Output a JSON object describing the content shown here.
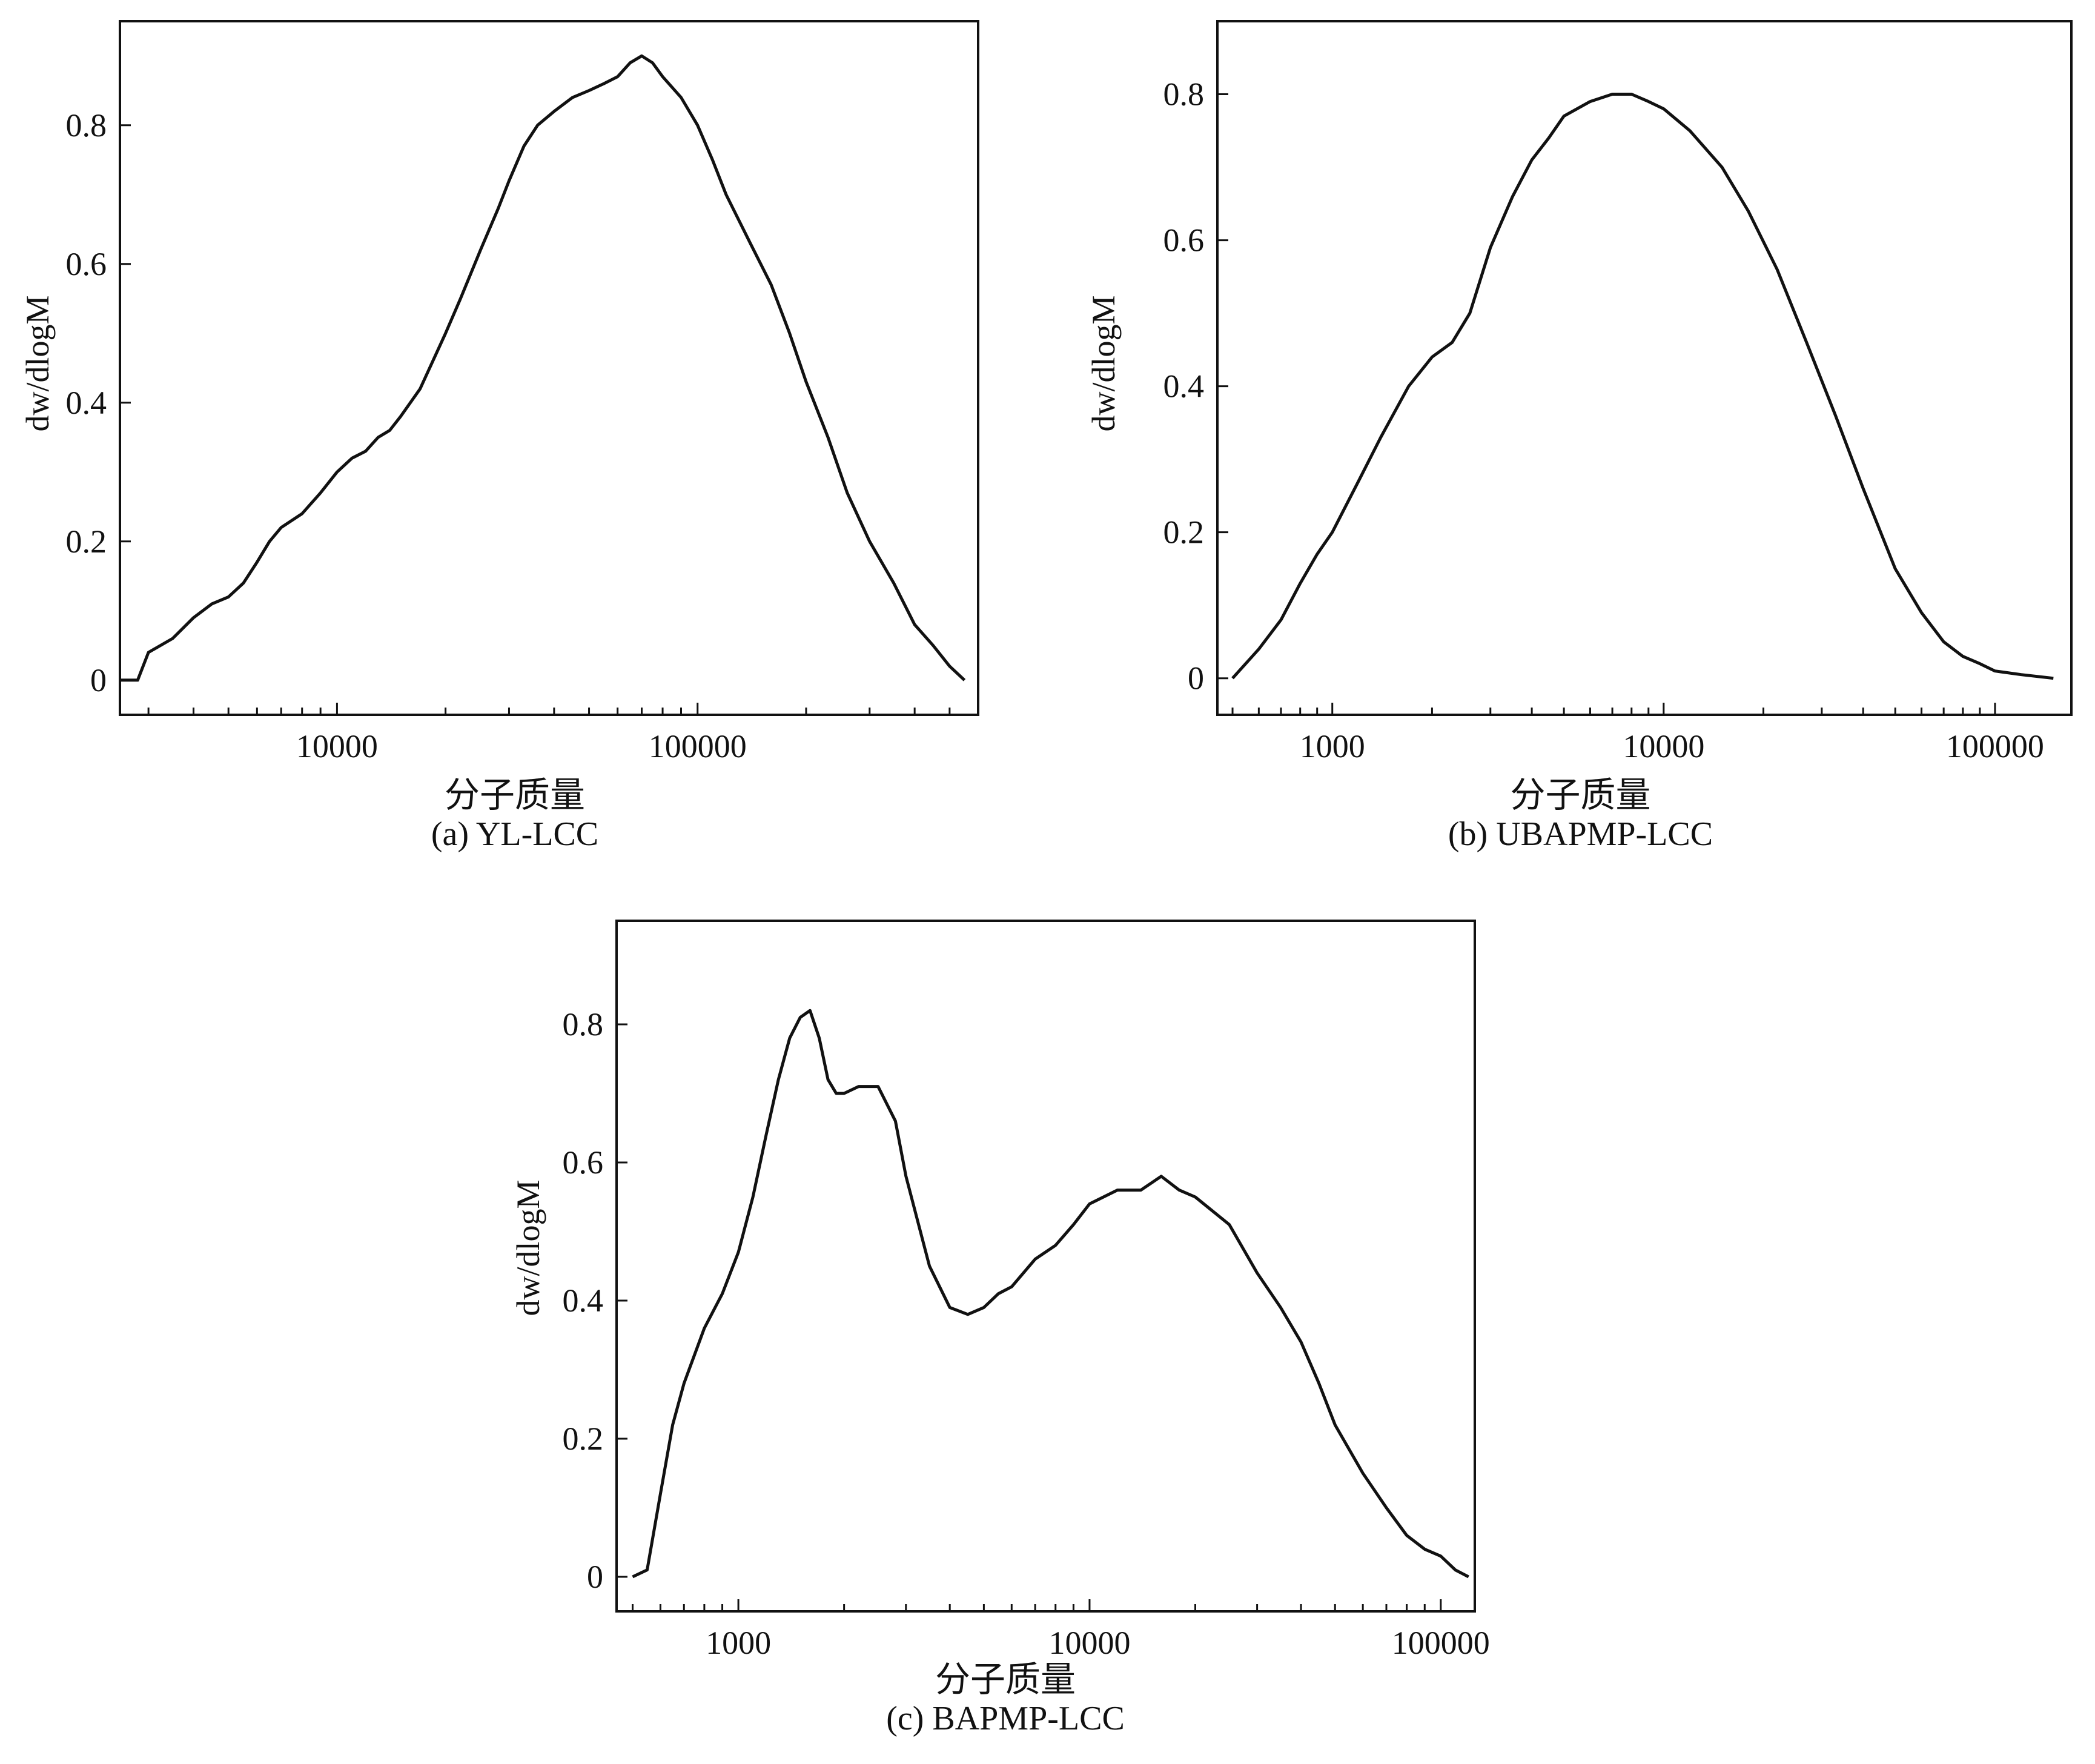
{
  "chart_data": [
    {
      "type": "line",
      "panel_label": "(a) YL-LCC",
      "xlabel": "分子质量",
      "ylabel": "dw/dlogM",
      "xscale": "log",
      "xlim": [
        2500,
        600000
      ],
      "ylim": [
        -0.05,
        0.95
      ],
      "xticks": [
        10000,
        100000
      ],
      "yticks": [
        0,
        0.2,
        0.4,
        0.6,
        0.8
      ],
      "grid": false,
      "x": [
        2500,
        2800,
        3000,
        3500,
        4000,
        4500,
        5000,
        5500,
        6000,
        6500,
        7000,
        8000,
        9000,
        10000,
        11000,
        12000,
        13000,
        14000,
        15000,
        17000,
        20000,
        22000,
        25000,
        28000,
        30000,
        33000,
        36000,
        40000,
        45000,
        50000,
        55000,
        60000,
        65000,
        70000,
        75000,
        80000,
        90000,
        100000,
        110000,
        120000,
        140000,
        160000,
        180000,
        200000,
        230000,
        260000,
        300000,
        350000,
        400000,
        450000,
        500000,
        550000
      ],
      "y": [
        0.0,
        0.0,
        0.04,
        0.06,
        0.09,
        0.11,
        0.12,
        0.14,
        0.17,
        0.2,
        0.22,
        0.24,
        0.27,
        0.3,
        0.32,
        0.33,
        0.35,
        0.36,
        0.38,
        0.42,
        0.5,
        0.55,
        0.62,
        0.68,
        0.72,
        0.77,
        0.8,
        0.82,
        0.84,
        0.85,
        0.86,
        0.87,
        0.89,
        0.9,
        0.89,
        0.87,
        0.84,
        0.8,
        0.75,
        0.7,
        0.63,
        0.57,
        0.5,
        0.43,
        0.35,
        0.27,
        0.2,
        0.14,
        0.08,
        0.05,
        0.02,
        0.0
      ]
    },
    {
      "type": "line",
      "panel_label": "(b) UBAPMP-LCC",
      "xlabel": "分子质量",
      "ylabel": "dw/dlogM",
      "xscale": "log",
      "xlim": [
        450,
        170000
      ],
      "ylim": [
        -0.05,
        0.9
      ],
      "xticks": [
        1000,
        10000,
        100000
      ],
      "yticks": [
        0,
        0.2,
        0.4,
        0.6,
        0.8
      ],
      "grid": false,
      "x": [
        500,
        600,
        700,
        800,
        900,
        1000,
        1200,
        1400,
        1700,
        2000,
        2300,
        2600,
        3000,
        3500,
        4000,
        4500,
        5000,
        6000,
        7000,
        8000,
        9000,
        10000,
        12000,
        15000,
        18000,
        22000,
        27000,
        33000,
        40000,
        50000,
        60000,
        70000,
        80000,
        90000,
        100000,
        120000,
        150000
      ],
      "y": [
        0.0,
        0.04,
        0.08,
        0.13,
        0.17,
        0.2,
        0.27,
        0.33,
        0.4,
        0.44,
        0.46,
        0.5,
        0.59,
        0.66,
        0.71,
        0.74,
        0.77,
        0.79,
        0.8,
        0.8,
        0.79,
        0.78,
        0.75,
        0.7,
        0.64,
        0.56,
        0.46,
        0.36,
        0.26,
        0.15,
        0.09,
        0.05,
        0.03,
        0.02,
        0.01,
        0.005,
        0.0
      ]
    },
    {
      "type": "line",
      "panel_label": "(c) BAPMP-LCC",
      "xlabel": "分子质量",
      "ylabel": "dw/dlogM",
      "xscale": "log",
      "xlim": [
        450,
        125000
      ],
      "ylim": [
        -0.05,
        0.95
      ],
      "xticks": [
        1000,
        10000,
        100000
      ],
      "yticks": [
        0,
        0.2,
        0.4,
        0.6,
        0.8
      ],
      "grid": false,
      "x": [
        500,
        550,
        600,
        650,
        700,
        800,
        900,
        1000,
        1100,
        1200,
        1300,
        1400,
        1500,
        1600,
        1700,
        1800,
        1900,
        2000,
        2200,
        2500,
        2800,
        3000,
        3500,
        4000,
        4500,
        5000,
        5500,
        6000,
        7000,
        8000,
        9000,
        10000,
        12000,
        14000,
        16000,
        18000,
        20000,
        25000,
        30000,
        35000,
        40000,
        45000,
        50000,
        60000,
        70000,
        80000,
        90000,
        100000,
        110000,
        120000
      ],
      "y": [
        0.0,
        0.01,
        0.12,
        0.22,
        0.28,
        0.36,
        0.41,
        0.47,
        0.55,
        0.64,
        0.72,
        0.78,
        0.81,
        0.82,
        0.78,
        0.72,
        0.7,
        0.7,
        0.71,
        0.71,
        0.66,
        0.58,
        0.45,
        0.39,
        0.38,
        0.39,
        0.41,
        0.42,
        0.46,
        0.48,
        0.51,
        0.54,
        0.56,
        0.56,
        0.58,
        0.56,
        0.55,
        0.51,
        0.44,
        0.39,
        0.34,
        0.28,
        0.22,
        0.15,
        0.1,
        0.06,
        0.04,
        0.03,
        0.01,
        0.0
      ]
    }
  ]
}
